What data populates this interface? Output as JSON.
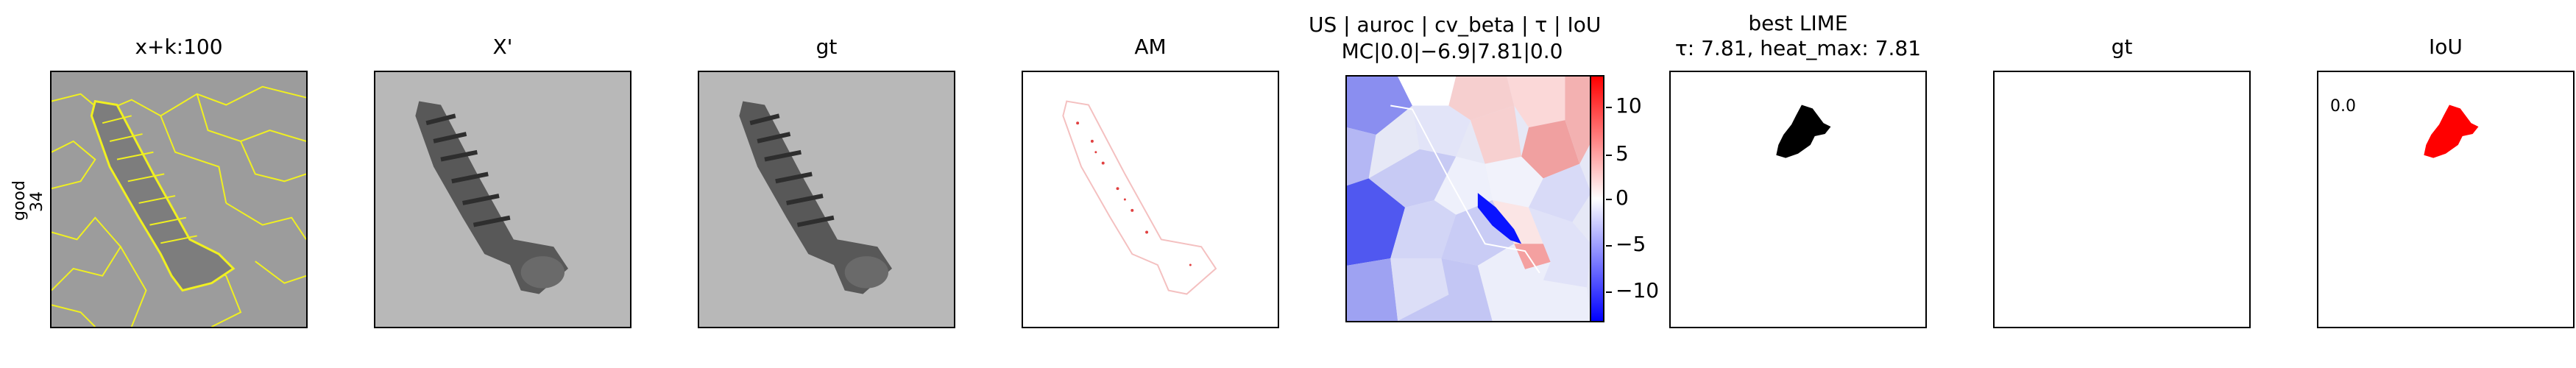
{
  "row": {
    "label_line1": "good",
    "label_line2": "34"
  },
  "panels": [
    {
      "title": "x+k:100"
    },
    {
      "title": "X'"
    },
    {
      "title": "gt"
    },
    {
      "title": "AM"
    },
    {
      "title_line1": "US | auroc | cv_beta | τ | IoU",
      "title_line2": "MC|0.0|−6.9|7.81|0.0"
    },
    {
      "title_line1": "best LIME",
      "title_line2": "τ: 7.81, heat_max: 7.81"
    },
    {
      "title": "gt"
    },
    {
      "title": "IoU"
    }
  ],
  "iou_value": "0.0",
  "colorbar": {
    "ticks": [
      "10",
      "5",
      "0",
      "−5",
      "−10"
    ],
    "ticks_values": [
      10,
      5,
      0,
      -5,
      -10
    ],
    "range": [
      -13,
      13
    ]
  },
  "colors": {
    "highlight_yellow": "#ffff33",
    "mask_black": "#000000",
    "mask_red": "#ff0000"
  }
}
